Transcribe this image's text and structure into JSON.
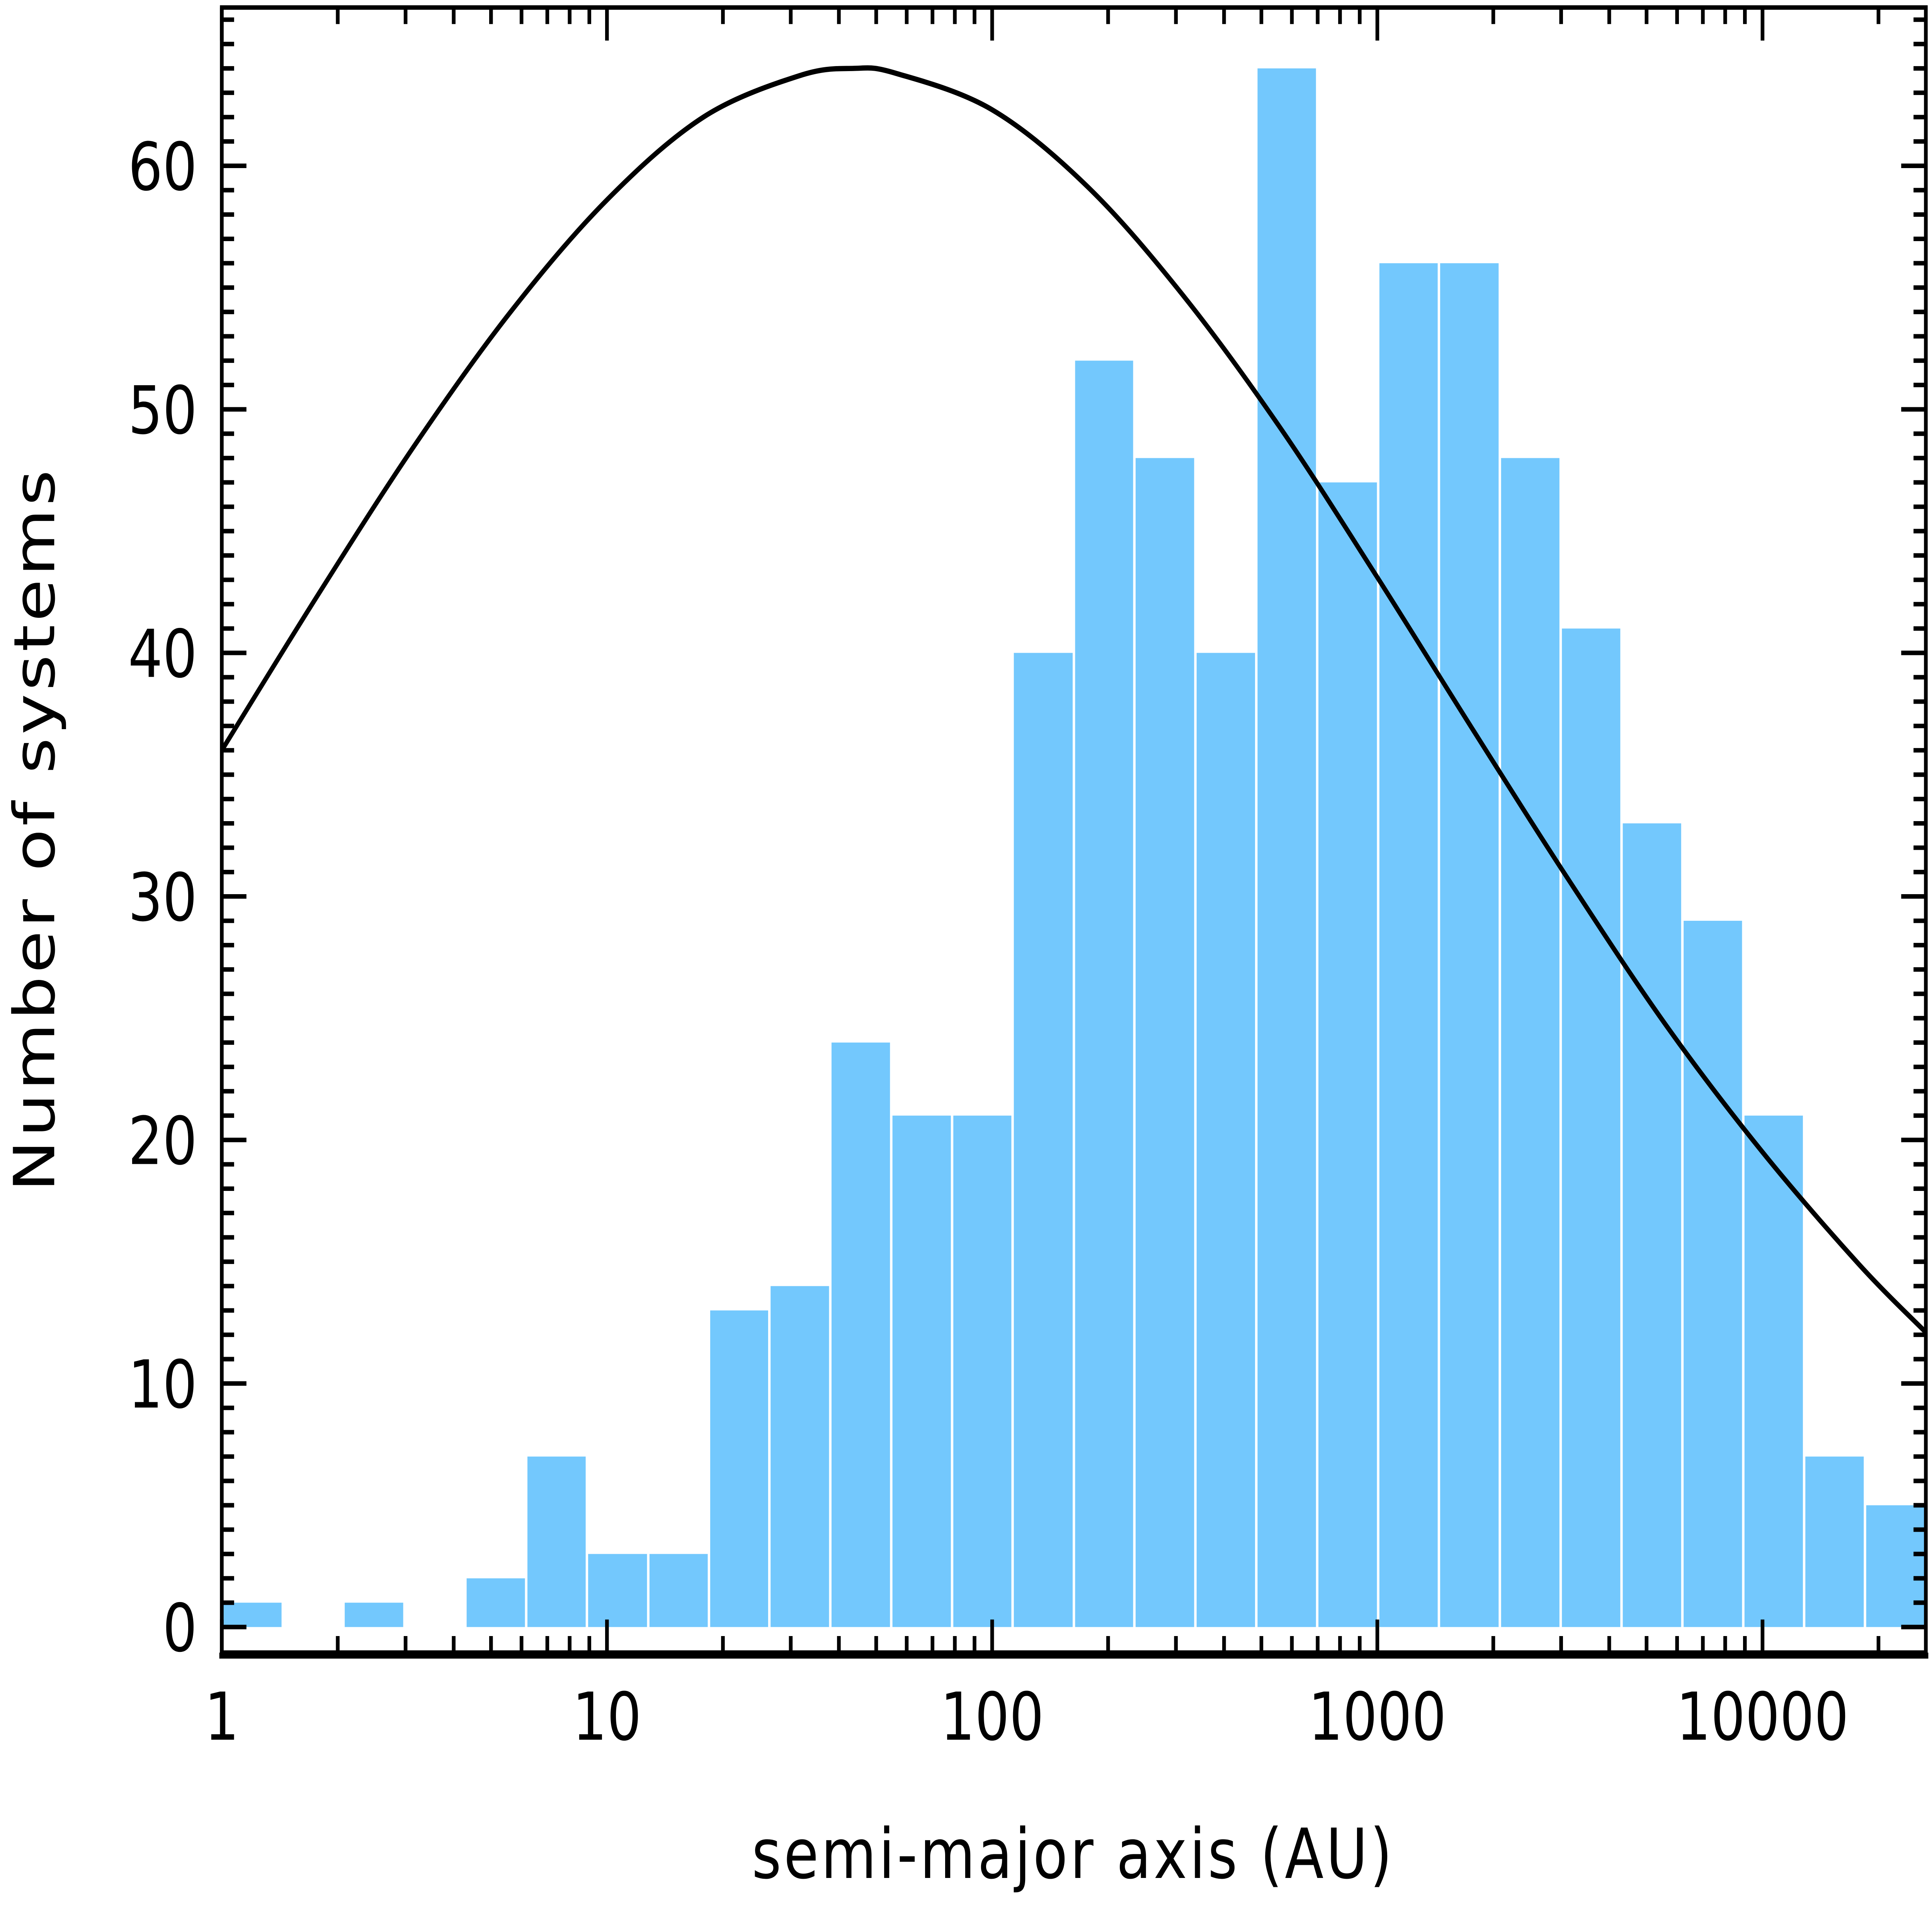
{
  "chart_data": {
    "type": "bar",
    "title": "",
    "xlabel": "semi-major axis (AU)",
    "ylabel": "Number of systems",
    "x_scale": "log",
    "xlim": [
      1,
      26546
    ],
    "ylim": [
      -1.05,
      66.5
    ],
    "grid": false,
    "x_tick_labels": [
      "1",
      "10",
      "100",
      "1000",
      "10000"
    ],
    "x_ticks": [
      1,
      10,
      100,
      1000,
      10000
    ],
    "y_tick_labels": [
      "0",
      "10",
      "20",
      "30",
      "40",
      "50",
      "60"
    ],
    "y_ticks": [
      0,
      10,
      20,
      30,
      40,
      50,
      60
    ],
    "bar_color": "#73c8fd",
    "bin_edges": [
      1,
      1.44,
      2.07,
      2.98,
      4.29,
      6.17,
      8.87,
      12.8,
      18.4,
      26.4,
      38.0,
      54.7,
      78.7,
      113,
      163,
      234,
      337,
      485,
      698,
      1005,
      1445,
      2080,
      2992,
      4305,
      6194,
      8913,
      12823,
      18450,
      26546
    ],
    "values": [
      1,
      0,
      1,
      0,
      2,
      7,
      3,
      3,
      13,
      14,
      24,
      21,
      21,
      40,
      52,
      48,
      40,
      64,
      47,
      56,
      56,
      48,
      41,
      33,
      29,
      21,
      7,
      5
    ],
    "curve": {
      "color": "#000000",
      "x": [
        1,
        1.78,
        3.16,
        5.62,
        10,
        17.8,
        31.6,
        43.7,
        56.2,
        100,
        178,
        316,
        562,
        1000,
        1778,
        3162,
        5623,
        10000,
        17783,
        26546
      ],
      "y": [
        36.0,
        42.4,
        48.5,
        54.0,
        58.6,
        62.0,
        63.7,
        64.0,
        63.8,
        62.3,
        59.1,
        54.6,
        49.2,
        43.1,
        36.8,
        30.6,
        24.7,
        19.5,
        14.9,
        12.1
      ]
    }
  }
}
